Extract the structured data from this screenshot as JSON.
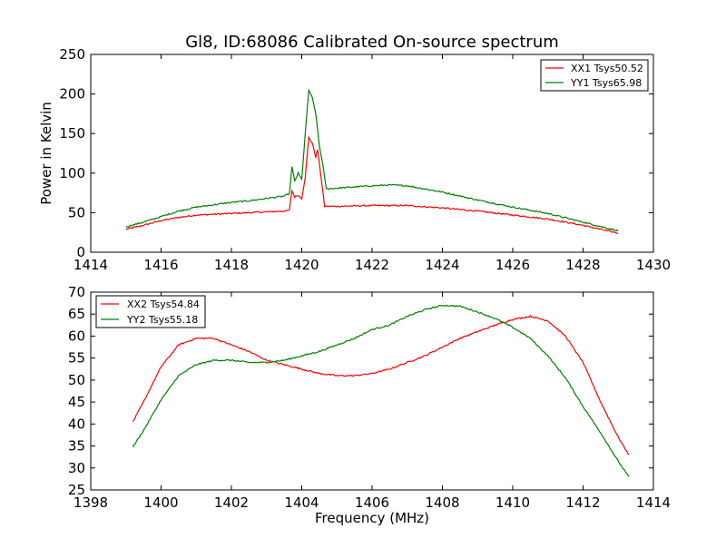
{
  "title": "Gl8, ID:68086 Calibrated On-source spectrum",
  "chart_data": [
    {
      "type": "line",
      "ylabel": "Power in Kelvin",
      "xlabel": "",
      "xlim": [
        1414,
        1430
      ],
      "ylim": [
        0,
        250
      ],
      "xticks": [
        1414,
        1416,
        1418,
        1420,
        1422,
        1424,
        1426,
        1428,
        1430
      ],
      "yticks": [
        0,
        50,
        100,
        150,
        200,
        250
      ],
      "legend_position": "top-right",
      "series": [
        {
          "name": "XX1 Tsys50.52",
          "color": "#ff0000",
          "points": [
            [
              1415.0,
              29
            ],
            [
              1415.5,
              34
            ],
            [
              1416.0,
              40
            ],
            [
              1416.5,
              44
            ],
            [
              1417.0,
              47
            ],
            [
              1417.5,
              48
            ],
            [
              1418.0,
              49
            ],
            [
              1418.5,
              50
            ],
            [
              1419.0,
              51
            ],
            [
              1419.5,
              52
            ],
            [
              1419.65,
              53
            ],
            [
              1419.72,
              78
            ],
            [
              1419.8,
              70
            ],
            [
              1419.9,
              72
            ],
            [
              1420.0,
              68
            ],
            [
              1420.1,
              95
            ],
            [
              1420.2,
              145
            ],
            [
              1420.3,
              138
            ],
            [
              1420.4,
              120
            ],
            [
              1420.45,
              130
            ],
            [
              1420.55,
              95
            ],
            [
              1420.65,
              58
            ],
            [
              1421.0,
              58
            ],
            [
              1422.0,
              59
            ],
            [
              1423.0,
              59
            ],
            [
              1424.0,
              56
            ],
            [
              1425.0,
              52
            ],
            [
              1426.0,
              47
            ],
            [
              1427.0,
              42
            ],
            [
              1428.0,
              34
            ],
            [
              1429.0,
              24
            ]
          ]
        },
        {
          "name": "YY1 Tsys65.98",
          "color": "#008000",
          "points": [
            [
              1415.0,
              32
            ],
            [
              1415.5,
              38
            ],
            [
              1416.0,
              45
            ],
            [
              1416.5,
              52
            ],
            [
              1417.0,
              57
            ],
            [
              1417.5,
              60
            ],
            [
              1418.0,
              63
            ],
            [
              1418.5,
              65
            ],
            [
              1419.0,
              68
            ],
            [
              1419.5,
              71
            ],
            [
              1419.65,
              74
            ],
            [
              1419.72,
              108
            ],
            [
              1419.8,
              90
            ],
            [
              1419.9,
              100
            ],
            [
              1420.0,
              92
            ],
            [
              1420.1,
              150
            ],
            [
              1420.2,
              205
            ],
            [
              1420.3,
              195
            ],
            [
              1420.4,
              175
            ],
            [
              1420.45,
              155
            ],
            [
              1420.5,
              135
            ],
            [
              1420.6,
              110
            ],
            [
              1420.7,
              80
            ],
            [
              1421.0,
              81
            ],
            [
              1422.0,
              84
            ],
            [
              1422.5,
              85
            ],
            [
              1423.0,
              84
            ],
            [
              1424.0,
              76
            ],
            [
              1425.0,
              66
            ],
            [
              1426.0,
              57
            ],
            [
              1427.0,
              49
            ],
            [
              1428.0,
              38
            ],
            [
              1429.0,
              27
            ]
          ]
        }
      ]
    },
    {
      "type": "line",
      "ylabel": "",
      "xlabel": "Frequency (MHz)",
      "xlim": [
        1398,
        1414
      ],
      "ylim": [
        25,
        70
      ],
      "xticks": [
        1398,
        1400,
        1402,
        1404,
        1406,
        1408,
        1410,
        1412,
        1414
      ],
      "yticks": [
        25,
        30,
        35,
        40,
        45,
        50,
        55,
        60,
        65,
        70
      ],
      "legend_position": "top-left",
      "series": [
        {
          "name": "XX2 Tsys54.84",
          "color": "#ff0000",
          "points": [
            [
              1399.2,
              40.5
            ],
            [
              1399.5,
              45
            ],
            [
              1400.0,
              53
            ],
            [
              1400.5,
              58
            ],
            [
              1401.0,
              59.5
            ],
            [
              1401.5,
              59.5
            ],
            [
              1402.0,
              58
            ],
            [
              1402.5,
              56.5
            ],
            [
              1403.0,
              54.5
            ],
            [
              1403.5,
              53.5
            ],
            [
              1404.0,
              52.5
            ],
            [
              1404.5,
              51.5
            ],
            [
              1405.0,
              51
            ],
            [
              1405.5,
              51
            ],
            [
              1406.0,
              51.5
            ],
            [
              1406.5,
              52.5
            ],
            [
              1407.0,
              54
            ],
            [
              1407.5,
              55.5
            ],
            [
              1408.0,
              57.5
            ],
            [
              1408.5,
              59.5
            ],
            [
              1409.0,
              61
            ],
            [
              1409.5,
              62.5
            ],
            [
              1410.0,
              63.8
            ],
            [
              1410.5,
              64.5
            ],
            [
              1411.0,
              63.5
            ],
            [
              1411.5,
              60
            ],
            [
              1412.0,
              54
            ],
            [
              1412.5,
              45
            ],
            [
              1413.0,
              37
            ],
            [
              1413.3,
              33
            ]
          ]
        },
        {
          "name": "YY2 Tsys55.18",
          "color": "#008000",
          "points": [
            [
              1399.2,
              34.8
            ],
            [
              1399.5,
              38.5
            ],
            [
              1400.0,
              45.5
            ],
            [
              1400.5,
              51
            ],
            [
              1401.0,
              53.5
            ],
            [
              1401.5,
              54.5
            ],
            [
              1402.0,
              54.5
            ],
            [
              1402.5,
              54
            ],
            [
              1403.0,
              54
            ],
            [
              1403.5,
              54.5
            ],
            [
              1404.0,
              55.5
            ],
            [
              1404.5,
              56.5
            ],
            [
              1405.0,
              58
            ],
            [
              1405.5,
              59.5
            ],
            [
              1406.0,
              61.5
            ],
            [
              1406.5,
              62.5
            ],
            [
              1407.0,
              64.5
            ],
            [
              1407.5,
              66
            ],
            [
              1408.0,
              67
            ],
            [
              1408.5,
              66.8
            ],
            [
              1409.0,
              65.5
            ],
            [
              1409.5,
              64
            ],
            [
              1410.0,
              62
            ],
            [
              1410.5,
              59.5
            ],
            [
              1411.0,
              55.5
            ],
            [
              1411.5,
              50.5
            ],
            [
              1412.0,
              44
            ],
            [
              1412.5,
              38
            ],
            [
              1413.0,
              31.5
            ],
            [
              1413.3,
              28
            ]
          ]
        }
      ]
    }
  ]
}
